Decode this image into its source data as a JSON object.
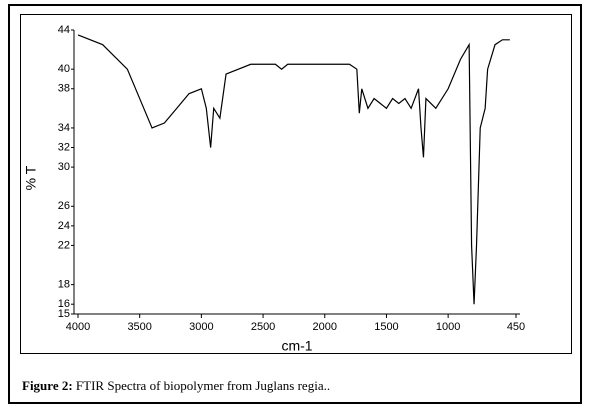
{
  "chart_data": {
    "type": "line",
    "ylabel": "% T",
    "xlabel": "cm-1",
    "x": [
      4000,
      3800,
      3600,
      3500,
      3400,
      3300,
      3200,
      3100,
      3000,
      2960,
      2925,
      2900,
      2850,
      2800,
      2600,
      2400,
      2350,
      2300,
      2000,
      1800,
      1740,
      1720,
      1700,
      1650,
      1600,
      1500,
      1450,
      1400,
      1350,
      1300,
      1240,
      1220,
      1200,
      1180,
      1100,
      1000,
      900,
      830,
      810,
      790,
      770,
      740,
      700,
      680,
      620,
      560,
      500
    ],
    "series": [
      {
        "color": "#000000",
        "values": [
          43.5,
          42.5,
          40,
          37,
          34,
          34.5,
          36,
          37.5,
          38,
          36,
          32,
          36,
          35,
          39.5,
          40.5,
          40.5,
          40,
          40.5,
          40.5,
          40.5,
          40,
          35.5,
          38,
          36,
          37,
          36,
          37,
          36.5,
          37,
          36,
          38,
          34,
          31,
          37,
          36,
          38,
          41,
          42.5,
          22,
          16,
          22,
          34,
          36,
          40,
          42.5,
          43,
          43
        ]
      }
    ],
    "xlim": [
      4000,
      450
    ],
    "xticks": [
      4000,
      3500,
      3000,
      2500,
      2000,
      1500,
      1000,
      450
    ],
    "ylim": [
      15,
      44
    ],
    "yticks": [
      15,
      16,
      18,
      22,
      24,
      26,
      30,
      32,
      34,
      38,
      40,
      44
    ]
  },
  "caption": {
    "label": "Figure 2:",
    "text": "FTIR Spectra of biopolymer from Juglans regia.."
  }
}
